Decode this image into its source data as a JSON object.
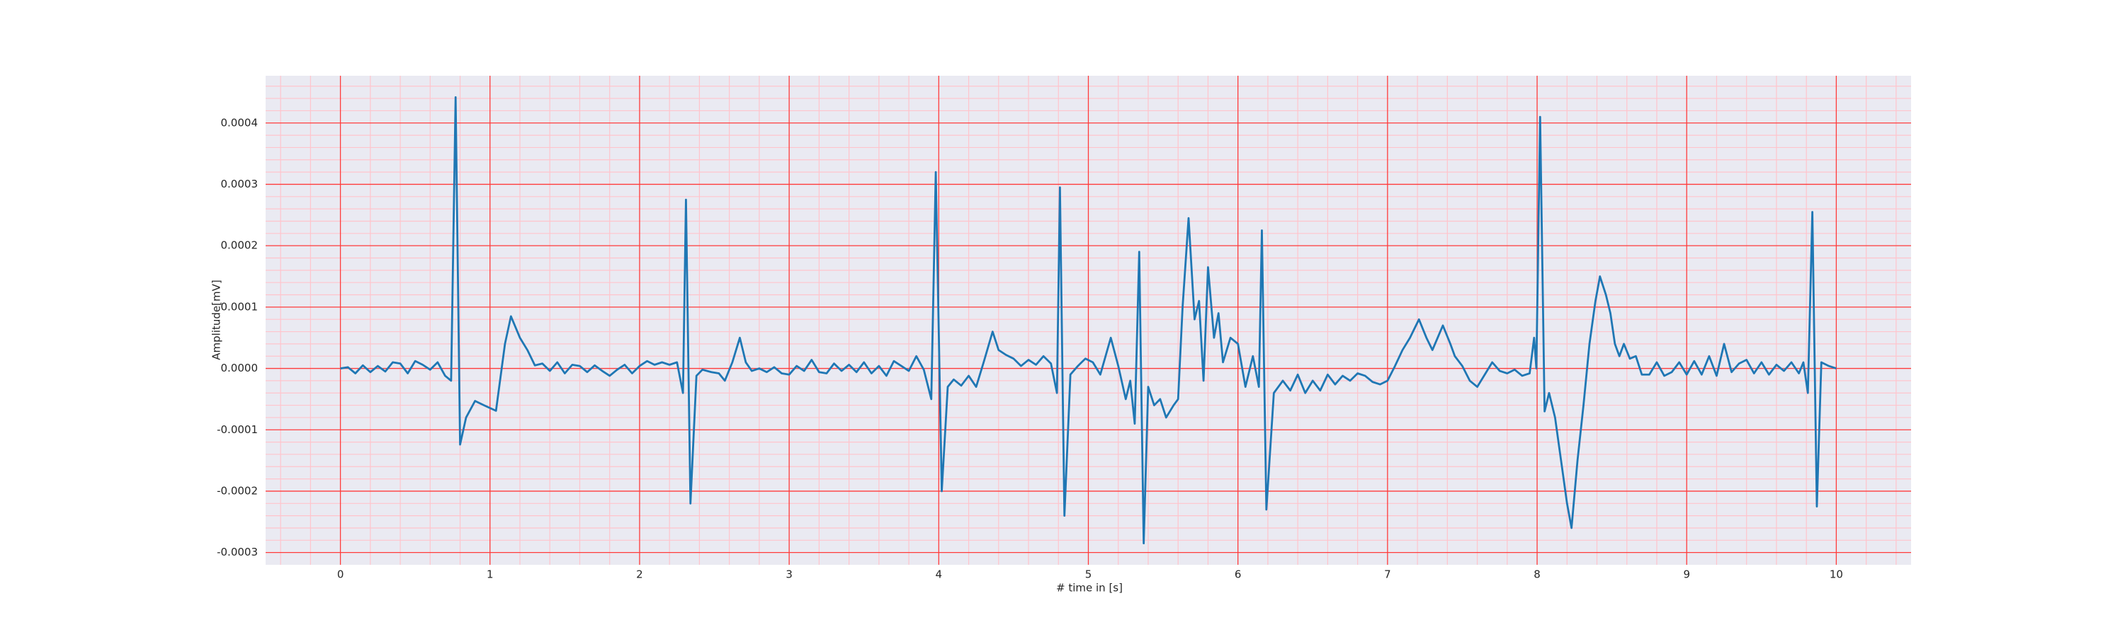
{
  "chart_data": {
    "type": "line",
    "xlabel": "# time in [s]",
    "ylabel": "Amplitude[mV]",
    "color": "#1f77b4",
    "background": "#eaeaf2",
    "grid": true,
    "grid_color": "#ff3b3b",
    "minor_grid_color": "#ffc4cc",
    "xlim": [
      -0.5,
      10.5
    ],
    "ylim": [
      -0.00032,
      0.000477
    ],
    "xticks": [
      0,
      1,
      2,
      3,
      4,
      5,
      6,
      7,
      8,
      9,
      10
    ],
    "yticks": [
      {
        "value": -0.0003,
        "label": "-0.0003"
      },
      {
        "value": -0.0002,
        "label": "-0.0002"
      },
      {
        "value": -0.0001,
        "label": "-0.0001"
      },
      {
        "value": 0,
        "label": "0.0000"
      },
      {
        "value": 0.0001,
        "label": "0.0001"
      },
      {
        "value": 0.0002,
        "label": "0.0002"
      },
      {
        "value": 0.0003,
        "label": "0.0003"
      },
      {
        "value": 0.0004,
        "label": "0.0004"
      }
    ],
    "xminorticks": [
      -0.4,
      -0.2,
      0.2,
      0.4,
      0.6,
      0.8,
      1.2,
      1.4,
      1.6,
      1.8,
      2.2,
      2.4,
      2.6,
      2.8,
      3.2,
      3.4,
      3.6,
      3.8,
      4.2,
      4.4,
      4.6,
      4.8,
      5.2,
      5.4,
      5.6,
      5.8,
      6.2,
      6.4,
      6.6,
      6.8,
      7.2,
      7.4,
      7.6,
      7.8,
      8.2,
      8.4,
      8.6,
      8.8,
      9.2,
      9.4,
      9.6,
      9.8,
      10.2,
      10.4
    ],
    "yminorticks": [
      -0.00028,
      -0.00026,
      -0.00024,
      -0.00022,
      -0.00018,
      -0.00016,
      -0.00014,
      -0.00012,
      -8e-05,
      -6e-05,
      -4e-05,
      -2e-05,
      2e-05,
      4e-05,
      6e-05,
      8e-05,
      0.00012,
      0.00014,
      0.00016,
      0.00018,
      0.00022,
      0.00024,
      0.00026,
      0.00028,
      0.00032,
      0.00034,
      0.00036,
      0.00038,
      0.00042,
      0.00044,
      0.00046
    ],
    "x": [
      0,
      0.05,
      0.1,
      0.15,
      0.2,
      0.25,
      0.3,
      0.35,
      0.4,
      0.45,
      0.5,
      0.55,
      0.6,
      0.65,
      0.7,
      0.74,
      0.77,
      0.8,
      0.84,
      0.9,
      0.96,
      1.04,
      1.1,
      1.14,
      1.2,
      1.25,
      1.3,
      1.35,
      1.4,
      1.45,
      1.5,
      1.55,
      1.6,
      1.65,
      1.7,
      1.75,
      1.8,
      1.85,
      1.9,
      1.95,
      2,
      2.05,
      2.1,
      2.15,
      2.2,
      2.25,
      2.29,
      2.31,
      2.34,
      2.38,
      2.42,
      2.48,
      2.53,
      2.57,
      2.62,
      2.67,
      2.71,
      2.75,
      2.8,
      2.85,
      2.9,
      2.95,
      3,
      3.05,
      3.1,
      3.15,
      3.2,
      3.25,
      3.3,
      3.35,
      3.4,
      3.45,
      3.5,
      3.55,
      3.6,
      3.65,
      3.7,
      3.75,
      3.8,
      3.85,
      3.9,
      3.95,
      3.98,
      4.02,
      4.06,
      4.1,
      4.15,
      4.2,
      4.25,
      4.3,
      4.36,
      4.4,
      4.45,
      4.5,
      4.55,
      4.6,
      4.65,
      4.7,
      4.75,
      4.79,
      4.81,
      4.84,
      4.88,
      4.93,
      4.98,
      5.03,
      5.08,
      5.15,
      5.2,
      5.25,
      5.28,
      5.31,
      5.34,
      5.37,
      5.4,
      5.44,
      5.48,
      5.52,
      5.57,
      5.6,
      5.63,
      5.67,
      5.71,
      5.74,
      5.77,
      5.8,
      5.84,
      5.87,
      5.9,
      5.95,
      6,
      6.05,
      6.1,
      6.14,
      6.16,
      6.19,
      6.24,
      6.3,
      6.35,
      6.4,
      6.45,
      6.5,
      6.55,
      6.6,
      6.65,
      6.7,
      6.75,
      6.8,
      6.85,
      6.9,
      6.95,
      7,
      7.05,
      7.1,
      7.15,
      7.21,
      7.26,
      7.3,
      7.37,
      7.42,
      7.45,
      7.5,
      7.55,
      7.6,
      7.65,
      7.7,
      7.75,
      7.8,
      7.85,
      7.9,
      7.95,
      7.98,
      7.995,
      8.02,
      8.05,
      8.08,
      8.12,
      8.16,
      8.2,
      8.23,
      8.27,
      8.31,
      8.35,
      8.39,
      8.42,
      8.46,
      8.49,
      8.52,
      8.55,
      8.58,
      8.62,
      8.66,
      8.7,
      8.75,
      8.8,
      8.85,
      8.9,
      8.95,
      9,
      9.05,
      9.1,
      9.15,
      9.2,
      9.25,
      9.3,
      9.35,
      9.4,
      9.45,
      9.5,
      9.55,
      9.6,
      9.65,
      9.7,
      9.75,
      9.78,
      9.81,
      9.84,
      9.87,
      9.9,
      9.95,
      10
    ],
    "values": [
      0,
      2e-06,
      -8e-06,
      5e-06,
      -6e-06,
      4e-06,
      -5e-06,
      1e-05,
      8e-06,
      -8e-06,
      1.2e-05,
      6e-06,
      -2e-06,
      1e-05,
      -1.2e-05,
      -2e-05,
      0.000442,
      -0.000124,
      -8e-05,
      -5.3e-05,
      -6e-05,
      -6.9e-05,
      4e-05,
      8.5e-05,
      5e-05,
      3e-05,
      5e-06,
      8e-06,
      -4e-06,
      1e-05,
      -8e-06,
      6e-06,
      4e-06,
      -6e-06,
      5e-06,
      -4e-06,
      -1.2e-05,
      -2e-06,
      6e-06,
      -8e-06,
      4e-06,
      1.2e-05,
      6e-06,
      1e-05,
      6e-06,
      1e-05,
      -4e-05,
      0.000275,
      -0.00022,
      -1.2e-05,
      -2e-06,
      -6e-06,
      -8e-06,
      -2e-05,
      1e-05,
      5e-05,
      1e-05,
      -4e-06,
      0,
      -6e-06,
      2e-06,
      -8e-06,
      -1e-05,
      4e-06,
      -4e-06,
      1.4e-05,
      -6e-06,
      -8e-06,
      8e-06,
      -4e-06,
      6e-06,
      -6e-06,
      1e-05,
      -8e-06,
      4e-06,
      -1.2e-05,
      1.2e-05,
      4e-06,
      -4e-06,
      2e-05,
      -2e-06,
      -5e-05,
      0.00032,
      -0.0002,
      -3e-05,
      -1.8e-05,
      -2.8e-05,
      -1.2e-05,
      -3e-05,
      1e-05,
      6e-05,
      3e-05,
      2.2e-05,
      1.6e-05,
      4e-06,
      1.4e-05,
      6e-06,
      2e-05,
      8e-06,
      -4e-05,
      0.000295,
      -0.00024,
      -1e-05,
      4e-06,
      1.6e-05,
      1e-05,
      -1e-05,
      5e-05,
      4e-06,
      -5e-05,
      -2e-05,
      -9e-05,
      0.00019,
      -0.000285,
      -3e-05,
      -6e-05,
      -5e-05,
      -8e-05,
      -6e-05,
      -5e-05,
      0.0001,
      0.000245,
      8e-05,
      0.00011,
      -2e-05,
      0.000165,
      5e-05,
      9e-05,
      1e-05,
      5e-05,
      4e-05,
      -3e-05,
      2e-05,
      -3e-05,
      0.000225,
      -0.00023,
      -4e-05,
      -2e-05,
      -3.6e-05,
      -1e-05,
      -4e-05,
      -2e-05,
      -3.6e-05,
      -1e-05,
      -2.6e-05,
      -1.2e-05,
      -2e-05,
      -8e-06,
      -1.2e-05,
      -2.2e-05,
      -2.6e-05,
      -2e-05,
      4e-06,
      3e-05,
      5e-05,
      8e-05,
      5e-05,
      3e-05,
      7e-05,
      4e-05,
      2e-05,
      4e-06,
      -2e-05,
      -3e-05,
      -1e-05,
      1e-05,
      -4e-06,
      -8e-06,
      -2e-06,
      -1.2e-05,
      -8e-06,
      5e-05,
      0,
      0.00041,
      -7e-05,
      -4e-05,
      -8e-05,
      -0.00015,
      -0.00022,
      -0.00026,
      -0.00015,
      -6e-05,
      4e-05,
      0.00011,
      0.00015,
      0.00012,
      9e-05,
      4e-05,
      2e-05,
      4e-05,
      1.6e-05,
      2e-05,
      -1e-05,
      -1e-05,
      1e-05,
      -1.2e-05,
      -6e-06,
      1e-05,
      -1e-05,
      1.2e-05,
      -1e-05,
      2e-05,
      -1.2e-05,
      4e-05,
      -6e-06,
      8e-06,
      1.4e-05,
      -8e-06,
      1e-05,
      -1e-05,
      6e-06,
      -4e-06,
      1e-05,
      -8e-06,
      1e-05,
      -4e-05,
      0.000255,
      -0.000225,
      1e-05,
      4e-06,
      0
    ]
  }
}
